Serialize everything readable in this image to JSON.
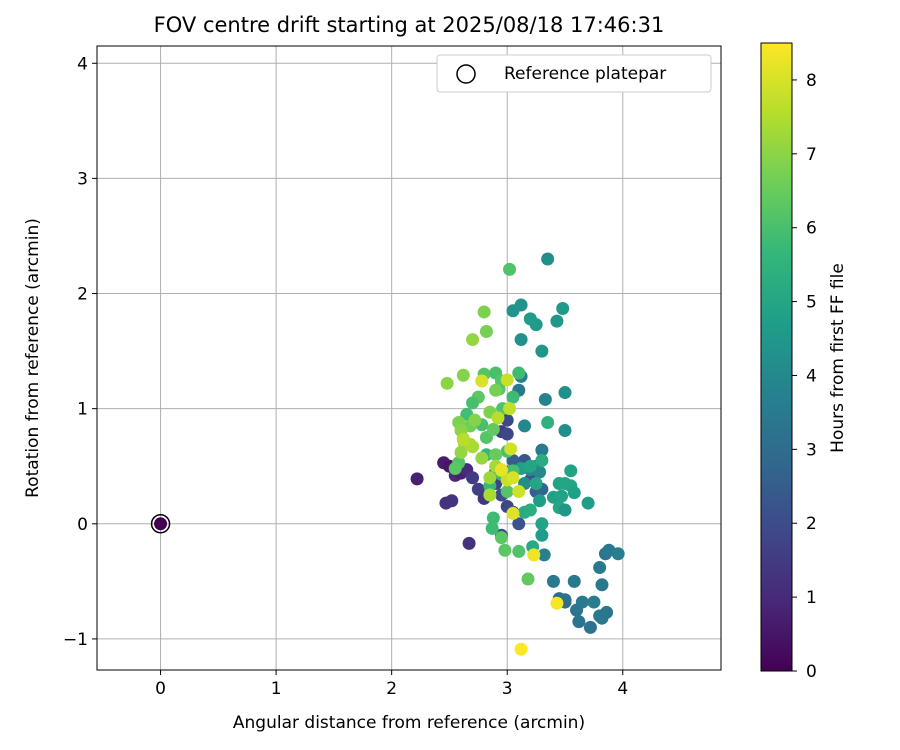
{
  "chart_data": {
    "type": "scatter",
    "title": "FOV centre drift starting at 2025/08/18 17:46:31",
    "xlabel": "Angular distance from reference (arcmin)",
    "ylabel": "Rotation from reference (arcmin)",
    "xlim": [
      -0.55,
      4.85
    ],
    "ylim": [
      -1.27,
      4.15
    ],
    "x_ticks": [
      0,
      1,
      2,
      3,
      4
    ],
    "y_ticks": [
      -1,
      0,
      1,
      2,
      3,
      4
    ],
    "x_tick_labels": [
      "0",
      "1",
      "2",
      "3",
      "4"
    ],
    "y_tick_labels": [
      "−1",
      "0",
      "1",
      "2",
      "3",
      "4"
    ],
    "grid": true,
    "legend": {
      "position": "top-right",
      "entries": [
        {
          "label": "Reference platepar",
          "marker": "open-circle"
        }
      ]
    },
    "colorbar": {
      "label": "Hours from first FF file",
      "range": [
        0,
        8.5
      ],
      "ticks": [
        0,
        1,
        2,
        3,
        4,
        5,
        6,
        7,
        8
      ],
      "colormap": [
        "#440154",
        "#482878",
        "#3e4989",
        "#31688e",
        "#26828e",
        "#1f9e89",
        "#35b779",
        "#6ece58",
        "#b5de2b",
        "#fde725"
      ]
    },
    "reference_point": {
      "x": 0,
      "y": 0,
      "hours": 0
    },
    "points": [
      [
        0,
        0,
        0
      ],
      [
        2.22,
        0.39,
        0.8
      ],
      [
        2.45,
        0.53,
        0.6
      ],
      [
        2.5,
        0.5,
        0.5
      ],
      [
        2.47,
        0.18,
        1.2
      ],
      [
        2.52,
        0.2,
        1.3
      ],
      [
        2.55,
        0.42,
        1.0
      ],
      [
        2.6,
        0.44,
        0.8
      ],
      [
        2.65,
        0.47,
        1.1
      ],
      [
        2.7,
        0.4,
        1.5
      ],
      [
        2.75,
        0.3,
        1.6
      ],
      [
        2.8,
        0.22,
        1.4
      ],
      [
        2.9,
        0.35,
        1.7
      ],
      [
        2.95,
        0.8,
        1.5
      ],
      [
        3.0,
        0.78,
        1.8
      ],
      [
        3.0,
        0.9,
        1.9
      ],
      [
        2.67,
        -0.17,
        1.2
      ],
      [
        2.95,
        0.25,
        2.0
      ],
      [
        3.0,
        0.15,
        1.8
      ],
      [
        3.05,
        0.1,
        2.1
      ],
      [
        2.9,
        0.45,
        1.9
      ],
      [
        3.1,
        0.5,
        2.2
      ],
      [
        3.15,
        0.55,
        2.3
      ],
      [
        3.2,
        0.38,
        2.2
      ],
      [
        3.25,
        0.28,
        2.5
      ],
      [
        3.3,
        0.3,
        2.8
      ],
      [
        3.0,
        0.45,
        2.4
      ],
      [
        2.95,
        -0.1,
        2.0
      ],
      [
        3.1,
        0.0,
        2.2
      ],
      [
        3.05,
        0.55,
        2.5
      ],
      [
        3.45,
        -0.65,
        3.0
      ],
      [
        3.5,
        -0.66,
        3.2
      ],
      [
        3.58,
        -0.5,
        3.4
      ],
      [
        3.6,
        -0.75,
        3.3
      ],
      [
        3.65,
        -0.68,
        3.5
      ],
      [
        3.62,
        -0.85,
        3.3
      ],
      [
        3.72,
        -0.9,
        3.2
      ],
      [
        3.75,
        -0.68,
        3.6
      ],
      [
        3.8,
        -0.8,
        3.5
      ],
      [
        3.82,
        -0.82,
        3.4
      ],
      [
        3.86,
        -0.77,
        3.3
      ],
      [
        3.8,
        -0.38,
        3.5
      ],
      [
        3.82,
        -0.53,
        3.4
      ],
      [
        3.85,
        -0.26,
        3.3
      ],
      [
        3.88,
        -0.23,
        3.5
      ],
      [
        3.96,
        -0.26,
        3.6
      ],
      [
        3.4,
        -0.5,
        3.5
      ],
      [
        3.5,
        -0.68,
        3.1
      ],
      [
        3.3,
        0.64,
        3.5
      ],
      [
        3.32,
        -0.27,
        3.7
      ],
      [
        3.1,
        1.16,
        3.4
      ],
      [
        3.12,
        1.28,
        3.6
      ],
      [
        3.15,
        0.85,
        3.9
      ],
      [
        3.33,
        1.08,
        3.8
      ],
      [
        3.2,
        0.47,
        3.9
      ],
      [
        3.25,
        0.5,
        4.0
      ],
      [
        3.28,
        0.45,
        4.0
      ],
      [
        3.15,
        0.35,
        4.1
      ],
      [
        3.35,
        2.3,
        4.2
      ],
      [
        3.05,
        1.85,
        4.4
      ],
      [
        3.12,
        1.9,
        4.4
      ],
      [
        3.25,
        1.73,
        4.6
      ],
      [
        3.12,
        1.6,
        4.3
      ],
      [
        3.3,
        1.5,
        4.5
      ],
      [
        3.2,
        1.78,
        4.7
      ],
      [
        3.43,
        1.76,
        4.5
      ],
      [
        3.48,
        1.87,
        4.6
      ],
      [
        3.5,
        1.14,
        4.2
      ],
      [
        3.5,
        0.81,
        4.2
      ],
      [
        3.28,
        0.2,
        4.7
      ],
      [
        3.3,
        0.0,
        4.9
      ],
      [
        3.3,
        -0.1,
        4.7
      ],
      [
        3.4,
        0.23,
        4.8
      ],
      [
        3.45,
        0.35,
        4.9
      ],
      [
        3.45,
        0.14,
        5.0
      ],
      [
        3.47,
        0.24,
        4.9
      ],
      [
        3.5,
        0.35,
        5.0
      ],
      [
        3.55,
        0.46,
        4.9
      ],
      [
        3.55,
        0.33,
        5.0
      ],
      [
        3.58,
        0.27,
        4.8
      ],
      [
        3.7,
        0.18,
        4.7
      ],
      [
        3.5,
        0.12,
        4.5
      ],
      [
        3.15,
        0.1,
        5.2
      ],
      [
        3.12,
        0.48,
        4.8
      ],
      [
        3.2,
        0.5,
        5.0
      ],
      [
        3.22,
        -0.2,
        5.1
      ],
      [
        3.2,
        0.12,
        5.3
      ],
      [
        3.35,
        0.88,
        5.4
      ],
      [
        3.3,
        0.55,
        5.2
      ],
      [
        3.25,
        0.35,
        5.0
      ],
      [
        3.1,
        1.31,
        5.8
      ],
      [
        3.02,
        2.21,
        6.1
      ],
      [
        3.05,
        1.1,
        5.8
      ],
      [
        2.85,
        0.33,
        5.7
      ],
      [
        2.88,
        0.05,
        5.8
      ],
      [
        2.87,
        -0.04,
        5.8
      ],
      [
        2.95,
        0.43,
        5.6
      ],
      [
        2.8,
        1.3,
        6.2
      ],
      [
        2.75,
        1.1,
        6.3
      ],
      [
        2.82,
        0.6,
        5.7
      ],
      [
        2.9,
        1.31,
        6.0
      ],
      [
        2.93,
        1.17,
        6.3
      ],
      [
        2.95,
        1.24,
        6.2
      ],
      [
        2.7,
        1.05,
        6.0
      ],
      [
        2.65,
        0.95,
        5.9
      ],
      [
        2.58,
        0.53,
        6.1
      ],
      [
        2.55,
        0.48,
        6.3
      ],
      [
        2.78,
        0.86,
        6.0
      ],
      [
        2.82,
        0.75,
        6.2
      ],
      [
        2.96,
        1.0,
        6.1
      ],
      [
        3.0,
        0.63,
        6.0
      ],
      [
        3.1,
        -0.24,
        6.1
      ],
      [
        3.18,
        -0.48,
        6.4
      ],
      [
        2.98,
        -0.23,
        6.3
      ],
      [
        2.95,
        -0.12,
        6.3
      ],
      [
        3.0,
        0.28,
        6.2
      ],
      [
        3.05,
        0.46,
        6.0
      ],
      [
        2.9,
        0.6,
        6.5
      ],
      [
        2.88,
        0.82,
        6.4
      ],
      [
        2.68,
        0.85,
        6.6
      ],
      [
        2.8,
        1.84,
        6.8
      ],
      [
        2.82,
        1.67,
        6.7
      ],
      [
        2.7,
        1.6,
        7.1
      ],
      [
        2.62,
        1.29,
        6.9
      ],
      [
        2.48,
        1.22,
        7.0
      ],
      [
        2.58,
        0.88,
        6.8
      ],
      [
        2.6,
        0.81,
        7.0
      ],
      [
        2.63,
        0.7,
        6.9
      ],
      [
        2.72,
        0.9,
        6.9
      ],
      [
        2.85,
        0.97,
        6.8
      ],
      [
        2.9,
        1.16,
        6.7
      ],
      [
        2.6,
        0.62,
        7.1
      ],
      [
        2.62,
        0.74,
        7.2
      ],
      [
        2.7,
        0.67,
        7.3
      ],
      [
        2.68,
        0.69,
        7.4
      ],
      [
        2.78,
        0.57,
        7.1
      ],
      [
        2.85,
        0.4,
        7.2
      ],
      [
        2.9,
        0.5,
        7.3
      ],
      [
        2.95,
        0.46,
        7.5
      ],
      [
        2.85,
        0.25,
        7.4
      ],
      [
        2.78,
        1.24,
        8.0
      ],
      [
        2.92,
        0.92,
        7.6
      ],
      [
        3.0,
        1.25,
        7.8
      ],
      [
        3.02,
        1.0,
        7.7
      ],
      [
        3.03,
        0.65,
        7.9
      ],
      [
        3.0,
        0.38,
        7.8
      ],
      [
        3.05,
        0.4,
        8.0
      ],
      [
        3.05,
        0.09,
        8.1
      ],
      [
        3.1,
        0.28,
        7.9
      ],
      [
        2.95,
        0.47,
        8.2
      ],
      [
        3.23,
        -0.27,
        8.3
      ],
      [
        3.43,
        -0.69,
        8.4
      ],
      [
        3.12,
        -1.09,
        8.5
      ],
      [
        2.62,
        0.73,
        7.6
      ]
    ]
  }
}
